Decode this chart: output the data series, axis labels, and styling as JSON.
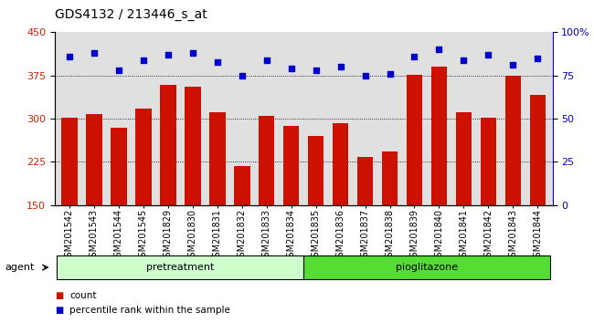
{
  "title": "GDS4132 / 213446_s_at",
  "categories": [
    "GSM201542",
    "GSM201543",
    "GSM201544",
    "GSM201545",
    "GSM201829",
    "GSM201830",
    "GSM201831",
    "GSM201832",
    "GSM201833",
    "GSM201834",
    "GSM201835",
    "GSM201836",
    "GSM201837",
    "GSM201838",
    "GSM201839",
    "GSM201840",
    "GSM201841",
    "GSM201842",
    "GSM201843",
    "GSM201844"
  ],
  "bar_values": [
    302,
    308,
    285,
    318,
    358,
    356,
    312,
    217,
    305,
    287,
    270,
    292,
    233,
    243,
    376,
    390,
    312,
    302,
    375,
    342
  ],
  "dot_values": [
    86,
    88,
    78,
    84,
    87,
    88,
    83,
    75,
    84,
    79,
    78,
    80,
    75,
    76,
    86,
    90,
    84,
    87,
    81,
    85
  ],
  "bar_color": "#cc1100",
  "dot_color": "#0000cc",
  "ylim_left": [
    150,
    450
  ],
  "ylim_right": [
    0,
    100
  ],
  "yticks_left": [
    150,
    225,
    300,
    375,
    450
  ],
  "yticks_right": [
    0,
    25,
    50,
    75,
    100
  ],
  "grid_values": [
    225,
    300,
    375
  ],
  "pretreatment_count": 10,
  "pretreatment_label": "pretreatment",
  "pioglitazone_label": "pioglitazone",
  "pretreatment_color": "#ccffcc",
  "pioglitazone_color": "#55dd33",
  "agent_label": "agent",
  "legend_count": "count",
  "legend_percentile": "percentile rank within the sample",
  "bg_color": "#e0e0e0",
  "title_fontsize": 10,
  "tick_fontsize": 7,
  "axis_left_color": "#cc2200",
  "axis_right_color": "#0000cc"
}
